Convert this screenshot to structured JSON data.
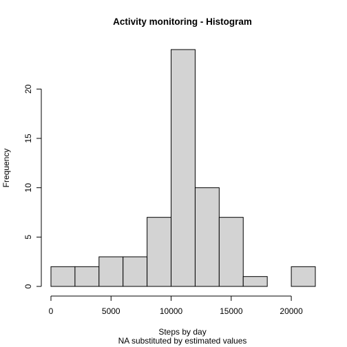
{
  "chart_data": {
    "type": "bar",
    "title": "Activity monitoring - Histogram",
    "xlabel": "Steps by day",
    "subtitle": "NA substituted by estimated values",
    "ylabel": "Frequency",
    "bins": [
      {
        "from": 0,
        "to": 2000,
        "count": 2
      },
      {
        "from": 2000,
        "to": 4000,
        "count": 2
      },
      {
        "from": 4000,
        "to": 6000,
        "count": 3
      },
      {
        "from": 6000,
        "to": 8000,
        "count": 3
      },
      {
        "from": 8000,
        "to": 10000,
        "count": 7
      },
      {
        "from": 10000,
        "to": 12000,
        "count": 24
      },
      {
        "from": 12000,
        "to": 14000,
        "count": 10
      },
      {
        "from": 14000,
        "to": 16000,
        "count": 7
      },
      {
        "from": 16000,
        "to": 18000,
        "count": 1
      },
      {
        "from": 18000,
        "to": 20000,
        "count": 0
      },
      {
        "from": 20000,
        "to": 22000,
        "count": 2
      }
    ],
    "xlim": [
      0,
      22000
    ],
    "ylim": [
      0,
      24
    ],
    "x_ticks": [
      0,
      5000,
      10000,
      15000,
      20000
    ],
    "y_ticks": [
      0,
      5,
      10,
      15,
      20
    ],
    "bar_color": "#d3d3d3",
    "edge_color": "#000000",
    "grid": false,
    "legend": "none"
  }
}
